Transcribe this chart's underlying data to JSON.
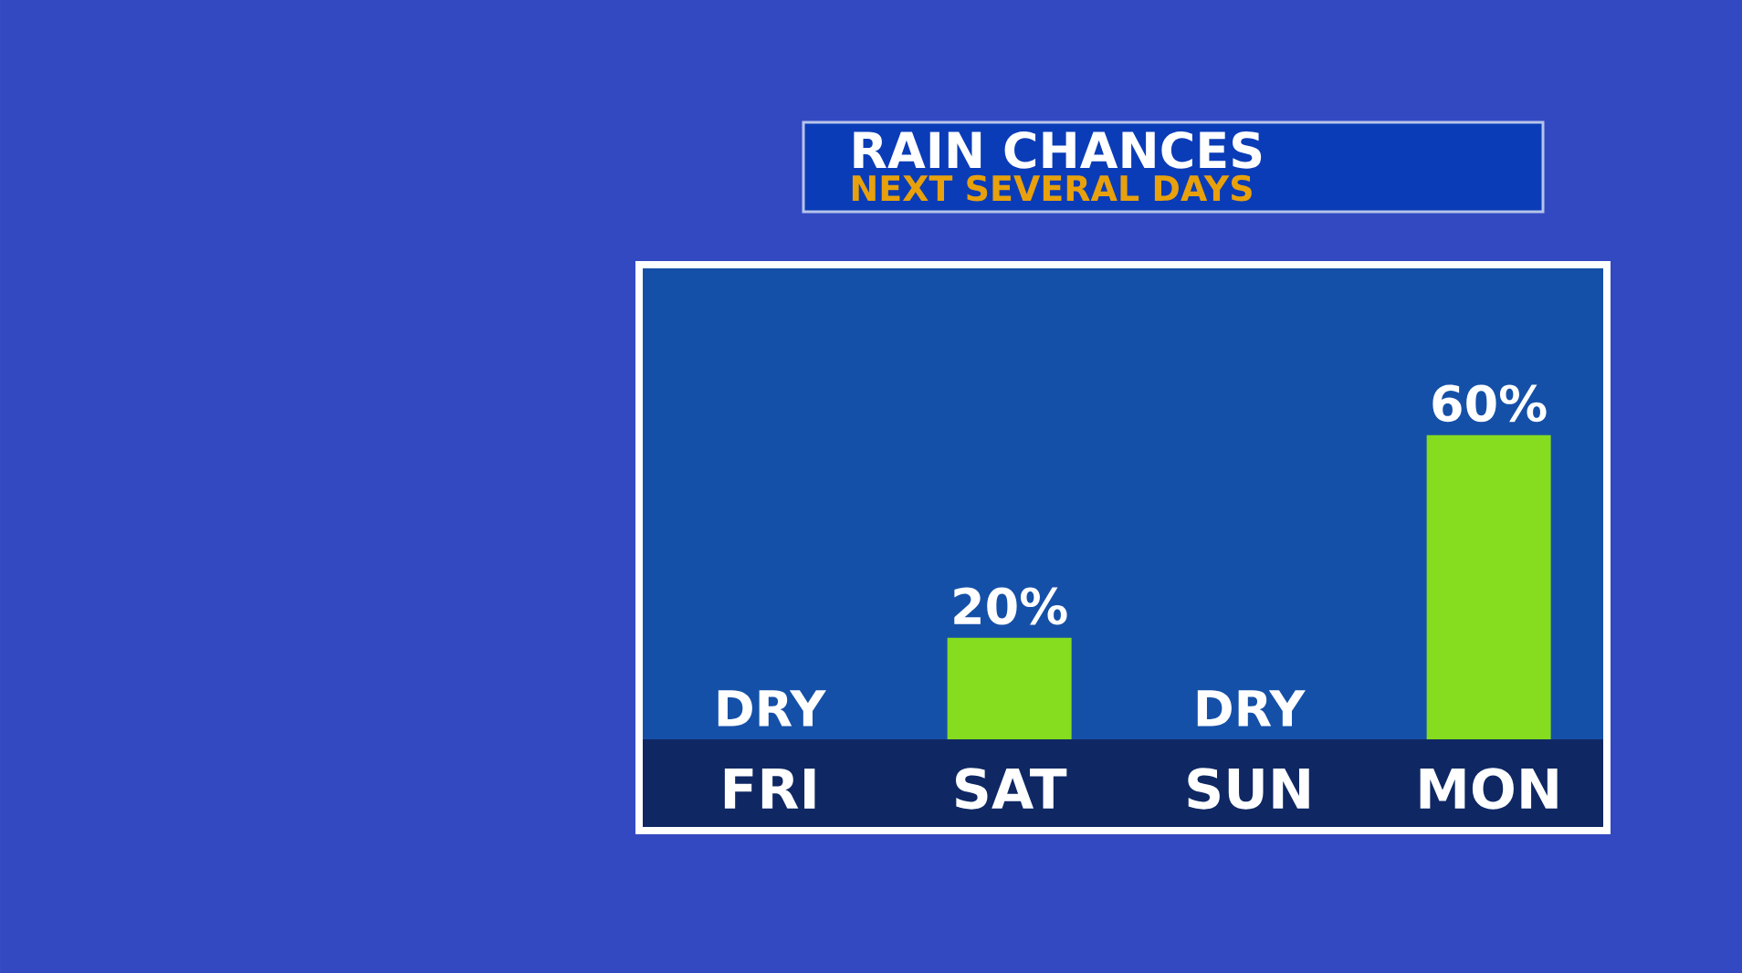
{
  "chart_data": {
    "type": "bar",
    "title": "RAIN CHANCES",
    "subtitle": "NEXT SEVERAL DAYS",
    "categories": [
      "FRI",
      "SAT",
      "SUN",
      "MON"
    ],
    "values": [
      0,
      20,
      0,
      60
    ],
    "value_labels": [
      "DRY",
      "20%",
      "DRY",
      "60%"
    ],
    "color": "#86dc1e"
  }
}
